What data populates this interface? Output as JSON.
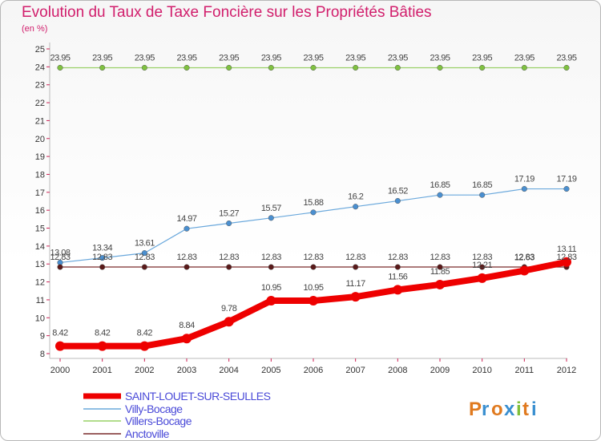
{
  "title": "Evolution du Taux de Taxe Foncière sur les Propriétés Bâties",
  "unit_label": "(en %)",
  "logo_text": "Proxiti",
  "chart_data": {
    "type": "line",
    "title": "Evolution du Taux de Taxe Foncière sur les Propriétés Bâties",
    "ylabel": "(en %)",
    "x": [
      "2000",
      "2001",
      "2002",
      "2003",
      "2004",
      "2005",
      "2006",
      "2007",
      "2008",
      "2009",
      "2010",
      "2011",
      "2012"
    ],
    "ylim": [
      8,
      25
    ],
    "yticks": [
      8,
      9,
      10,
      11,
      12,
      13,
      14,
      15,
      16,
      17,
      18,
      19,
      20,
      21,
      22,
      23,
      24,
      25
    ],
    "grid": false,
    "legend_position": "bottom-left",
    "series": [
      {
        "name": "SAINT-LOUET-SUR-SEULLES",
        "color": "#ee0000",
        "values": [
          8.42,
          8.42,
          8.42,
          8.84,
          9.78,
          10.95,
          10.95,
          11.17,
          11.56,
          11.85,
          12.21,
          12.63,
          13.11
        ],
        "labels": [
          "8.42",
          "8.42",
          "8.42",
          "8.84",
          "9.78",
          "10.95",
          "10.95",
          "11.17",
          "11.56",
          "11.85",
          "12.21",
          "12.63",
          "13.11"
        ]
      },
      {
        "name": "Villy-Bocage",
        "color": "#5aa0d8",
        "values": [
          13.08,
          13.34,
          13.61,
          14.97,
          15.27,
          15.57,
          15.88,
          16.2,
          16.52,
          16.85,
          16.85,
          17.19,
          17.19
        ],
        "labels": [
          "13.08",
          "13.34",
          "13.61",
          "14.97",
          "15.27",
          "15.57",
          "15.88",
          "16.2",
          "16.52",
          "16.85",
          "16.85",
          "17.19",
          "17.19"
        ]
      },
      {
        "name": "Villers-Bocage",
        "color": "#88cc55",
        "values": [
          23.95,
          23.95,
          23.95,
          23.95,
          23.95,
          23.95,
          23.95,
          23.95,
          23.95,
          23.95,
          23.95,
          23.95,
          23.95
        ],
        "labels": [
          "23.95",
          "23.95",
          "23.95",
          "23.95",
          "23.95",
          "23.95",
          "23.95",
          "23.95",
          "23.95",
          "23.95",
          "23.95",
          "23.95",
          "23.95"
        ]
      },
      {
        "name": "Anctoville",
        "color": "#6b1f22",
        "values": [
          12.83,
          12.83,
          12.83,
          12.83,
          12.83,
          12.83,
          12.83,
          12.83,
          12.83,
          12.83,
          12.83,
          12.83,
          12.83
        ],
        "labels": [
          "12.83",
          "12.83",
          "12.83",
          "12.83",
          "12.83",
          "12.83",
          "12.83",
          "12.83",
          "12.83",
          "12.83",
          "12.83",
          "12.83",
          "12.83"
        ]
      }
    ]
  }
}
